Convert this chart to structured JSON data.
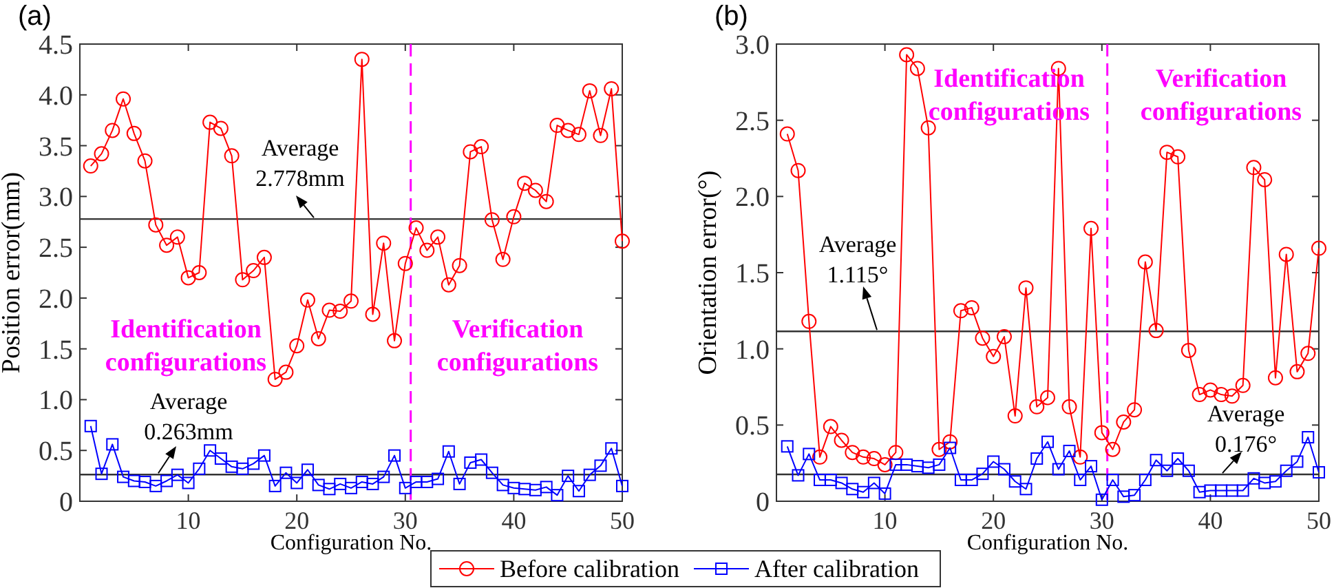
{
  "chart_data": [
    {
      "type": "line",
      "title": "(a)",
      "xlabel": "Configuration No.",
      "ylabel": "Position error(mm)",
      "x": [
        1,
        2,
        3,
        4,
        5,
        6,
        7,
        8,
        9,
        10,
        11,
        12,
        13,
        14,
        15,
        16,
        17,
        18,
        19,
        20,
        21,
        22,
        23,
        24,
        25,
        26,
        27,
        28,
        29,
        30,
        31,
        32,
        33,
        34,
        35,
        36,
        37,
        38,
        39,
        40,
        41,
        42,
        43,
        44,
        45,
        46,
        47,
        48,
        49,
        50
      ],
      "series": [
        {
          "name": "Before calibration",
          "color": "#ff0000",
          "marker": "circle",
          "values": [
            3.3,
            3.42,
            3.65,
            3.96,
            3.62,
            3.35,
            2.72,
            2.52,
            2.6,
            2.2,
            2.25,
            3.73,
            3.67,
            3.4,
            2.18,
            2.27,
            2.4,
            1.2,
            1.27,
            1.53,
            1.98,
            1.6,
            1.88,
            1.87,
            1.97,
            4.35,
            1.84,
            2.54,
            1.58,
            2.34,
            2.69,
            2.47,
            2.6,
            2.13,
            2.32,
            3.44,
            3.49,
            2.77,
            2.38,
            2.8,
            3.13,
            3.06,
            2.95,
            3.7,
            3.65,
            3.61,
            4.04,
            3.6,
            4.06,
            2.56
          ]
        },
        {
          "name": "After calibration",
          "color": "#0000ff",
          "marker": "square",
          "values": [
            0.74,
            0.27,
            0.56,
            0.24,
            0.2,
            0.19,
            0.15,
            0.2,
            0.26,
            0.18,
            0.32,
            0.5,
            0.42,
            0.34,
            0.32,
            0.37,
            0.45,
            0.15,
            0.28,
            0.18,
            0.31,
            0.16,
            0.12,
            0.17,
            0.13,
            0.19,
            0.17,
            0.24,
            0.45,
            0.13,
            0.19,
            0.19,
            0.22,
            0.49,
            0.17,
            0.38,
            0.41,
            0.28,
            0.16,
            0.13,
            0.12,
            0.11,
            0.14,
            0.06,
            0.25,
            0.1,
            0.26,
            0.35,
            0.52,
            0.15
          ]
        }
      ],
      "xlim": [
        0,
        50
      ],
      "xticks": [
        10,
        20,
        30,
        40,
        50
      ],
      "ylim": [
        0,
        4.5
      ],
      "yticks": [
        0,
        0.5,
        {
          "value": 1,
          "label": "1.0"
        },
        1.5,
        {
          "value": 2,
          "label": "2.0"
        },
        2.5,
        {
          "value": 3,
          "label": "3.0"
        },
        3.5,
        {
          "value": 4,
          "label": "4.0"
        },
        4.5
      ],
      "ref_lines": [
        {
          "axis": "y",
          "value": 2.778,
          "label": "Average 2.778mm",
          "color": "#333333"
        },
        {
          "axis": "y",
          "value": 0.263,
          "label": "Average 0.263mm",
          "color": "#333333"
        },
        {
          "axis": "x",
          "value": 30.5,
          "color": "#ff00ff",
          "line_style": "dashed"
        }
      ],
      "annotations": [
        "Identification configurations",
        "Verification configurations"
      ],
      "grid": false,
      "legend": "bottom",
      "line_style": "solid"
    },
    {
      "type": "line",
      "title": "(b)",
      "xlabel": "Configuration No.",
      "ylabel": "Orientation error(°)",
      "x": [
        1,
        2,
        3,
        4,
        5,
        6,
        7,
        8,
        9,
        10,
        11,
        12,
        13,
        14,
        15,
        16,
        17,
        18,
        19,
        20,
        21,
        22,
        23,
        24,
        25,
        26,
        27,
        28,
        29,
        30,
        31,
        32,
        33,
        34,
        35,
        36,
        37,
        38,
        39,
        40,
        41,
        42,
        43,
        44,
        45,
        46,
        47,
        48,
        49,
        50
      ],
      "series": [
        {
          "name": "Before calibration",
          "color": "#ff0000",
          "marker": "circle",
          "values": [
            2.41,
            2.17,
            1.18,
            0.29,
            0.49,
            0.4,
            0.32,
            0.29,
            0.28,
            0.24,
            0.32,
            2.93,
            2.84,
            2.45,
            0.34,
            0.39,
            1.25,
            1.27,
            1.07,
            0.95,
            1.08,
            0.56,
            1.4,
            0.62,
            0.68,
            2.84,
            0.62,
            0.29,
            1.79,
            0.45,
            0.34,
            0.52,
            0.6,
            1.57,
            1.12,
            2.29,
            2.26,
            0.99,
            0.7,
            0.73,
            0.7,
            0.69,
            0.76,
            2.19,
            2.11,
            0.81,
            1.62,
            0.85,
            0.97,
            1.66
          ]
        },
        {
          "name": "After calibration",
          "color": "#0000ff",
          "marker": "square",
          "values": [
            0.36,
            0.17,
            0.31,
            0.14,
            0.14,
            0.12,
            0.08,
            0.06,
            0.12,
            0.05,
            0.24,
            0.24,
            0.23,
            0.22,
            0.24,
            0.35,
            0.14,
            0.14,
            0.18,
            0.26,
            0.21,
            0.13,
            0.08,
            0.28,
            0.39,
            0.21,
            0.33,
            0.14,
            0.23,
            0.01,
            0.14,
            0.03,
            0.04,
            0.14,
            0.27,
            0.2,
            0.28,
            0.2,
            0.06,
            0.07,
            0.07,
            0.07,
            0.07,
            0.15,
            0.12,
            0.13,
            0.2,
            0.26,
            0.42,
            0.19
          ]
        }
      ],
      "xlim": [
        0,
        50
      ],
      "xticks": [
        10,
        20,
        30,
        40,
        50
      ],
      "ylim": [
        0,
        3
      ],
      "yticks": [
        0,
        0.5,
        {
          "value": 1,
          "label": "1.0"
        },
        1.5,
        {
          "value": 2,
          "label": "2.0"
        },
        2.5,
        {
          "value": 3,
          "label": "3.0"
        }
      ],
      "ref_lines": [
        {
          "axis": "y",
          "value": 1.115,
          "label": "Average 1.115°",
          "color": "#333333"
        },
        {
          "axis": "y",
          "value": 0.176,
          "label": "Average 0.176°",
          "color": "#333333"
        },
        {
          "axis": "x",
          "value": 30.5,
          "color": "#ff00ff",
          "line_style": "dashed"
        }
      ],
      "annotations": [
        "Identification configurations",
        "Verification configurations"
      ],
      "grid": false,
      "legend": "bottom",
      "line_style": "solid"
    }
  ]
}
